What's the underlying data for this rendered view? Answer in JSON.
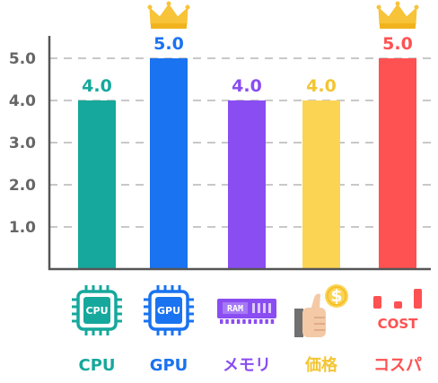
{
  "chart_data": {
    "type": "bar",
    "categories": [
      "CPU",
      "GPU",
      "メモリ",
      "価格",
      "コスパ"
    ],
    "values": [
      4.0,
      5.0,
      4.0,
      4.0,
      5.0
    ],
    "value_labels": [
      "4.0",
      "5.0",
      "4.0",
      "4.0",
      "5.0"
    ],
    "colors": [
      "#16a89c",
      "#1a73f0",
      "#8a4df2",
      "#fcd454",
      "#fe5152"
    ],
    "label_colors": [
      "#16a89c",
      "#1a73f0",
      "#8a4df2",
      "#f3c533",
      "#fe5152"
    ],
    "icons": [
      "cpu-chip-icon",
      "gpu-chip-icon",
      "ram-module-icon",
      "thumbs-up-coin-icon",
      "cost-bar-icon"
    ],
    "icon_texts": [
      "CPU",
      "GPU",
      "RAM",
      "$",
      "COST"
    ],
    "crowned": [
      false,
      true,
      false,
      false,
      true
    ],
    "y_ticks": [
      "1.0",
      "2.0",
      "3.0",
      "4.0",
      "5.0"
    ],
    "ylim": [
      0,
      5.7
    ],
    "grid": true,
    "title": "",
    "xlabel": "",
    "ylabel": ""
  }
}
